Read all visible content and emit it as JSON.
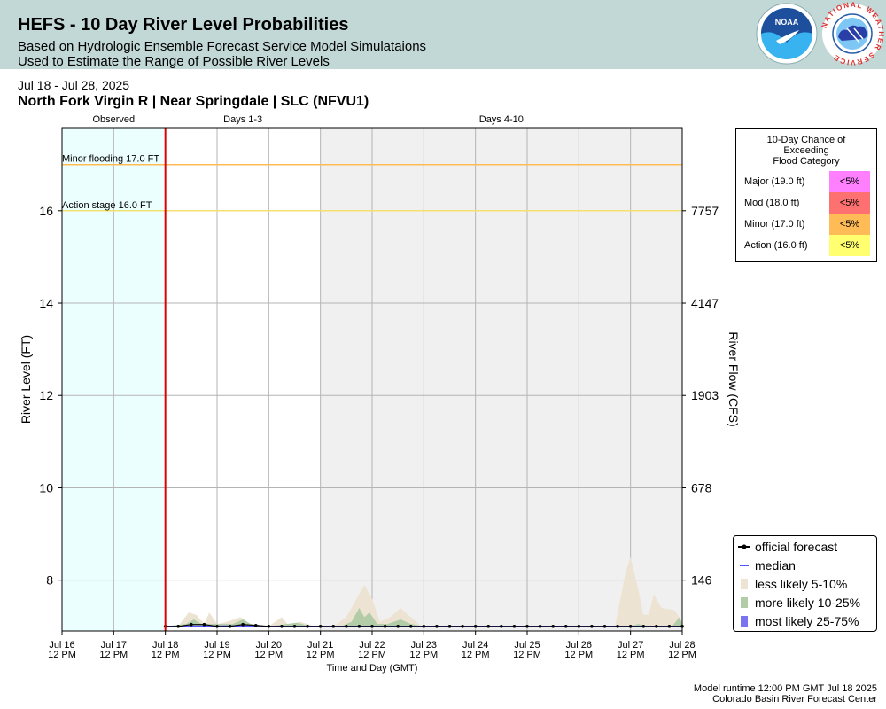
{
  "header": {
    "title": "HEFS - 10 Day River Level Probabilities",
    "subtitle1": "Based on Hydrologic Ensemble Forecast Service Model Simulataions",
    "subtitle2": "Used to Estimate the Range of Possible River Levels",
    "noaa_logo_text": "NOAA",
    "nws_logo_text": "NATIONAL WEATHER SERVICE"
  },
  "date_range": "Jul 18 - Jul 28, 2025",
  "location": "North Fork Virgin R | Near Springdale | SLC (NFVU1)",
  "footer": {
    "runtime": "Model runtime 12:00 PM GMT Jul 18 2025",
    "center": "Colorado Basin River Forecast Center"
  },
  "flood_table": {
    "title": [
      "10-Day Chance of",
      "Exceeding",
      "Flood Category"
    ],
    "rows": [
      {
        "label": "Major (19.0 ft)",
        "chance": "<5%",
        "color": "#ff80ff"
      },
      {
        "label": "Mod (18.0 ft)",
        "chance": "<5%",
        "color": "#ff7070"
      },
      {
        "label": "Minor (17.0 ft)",
        "chance": "<5%",
        "color": "#ffbb55"
      },
      {
        "label": "Action (16.0 ft)",
        "chance": "<5%",
        "color": "#ffff70"
      }
    ]
  },
  "legend": [
    {
      "label": "official forecast",
      "color": "#000000",
      "kind": "line-dot"
    },
    {
      "label": "median",
      "color": "#5555ff",
      "kind": "line"
    },
    {
      "label": "less likely 5-10%",
      "color": "#ede3d3",
      "kind": "box"
    },
    {
      "label": "more likely 10-25%",
      "color": "#b3cca8",
      "kind": "box"
    },
    {
      "label": "most likely 25-75%",
      "color": "#7a74ee",
      "kind": "box"
    }
  ],
  "chart_data": {
    "type": "area",
    "ylabel": "River Level (FT)",
    "y2label": "River Flow (CFS)",
    "xlabel": "Time and Day (GMT)",
    "ylim": [
      6.9,
      17.8
    ],
    "xlim": [
      0,
      10
    ],
    "yticks": [
      8,
      10,
      12,
      14,
      16
    ],
    "y2ticks": [
      {
        "level": 8,
        "label": "146"
      },
      {
        "level": 10,
        "label": "678"
      },
      {
        "level": 12,
        "label": "1903"
      },
      {
        "level": 14,
        "label": "4147"
      },
      {
        "level": 16,
        "label": "7757"
      }
    ],
    "xticks": [
      {
        "day": -2,
        "label": [
          "Jul 16",
          "12 PM"
        ]
      },
      {
        "day": -1,
        "label": [
          "Jul 17",
          "12 PM"
        ]
      },
      {
        "day": 0,
        "label": [
          "Jul 18",
          "12 PM"
        ]
      },
      {
        "day": 1,
        "label": [
          "Jul 19",
          "12 PM"
        ]
      },
      {
        "day": 2,
        "label": [
          "Jul 20",
          "12 PM"
        ]
      },
      {
        "day": 3,
        "label": [
          "Jul 21",
          "12 PM"
        ]
      },
      {
        "day": 4,
        "label": [
          "Jul 22",
          "12 PM"
        ]
      },
      {
        "day": 5,
        "label": [
          "Jul 23",
          "12 PM"
        ]
      },
      {
        "day": 6,
        "label": [
          "Jul 24",
          "12 PM"
        ]
      },
      {
        "day": 7,
        "label": [
          "Jul 25",
          "12 PM"
        ]
      },
      {
        "day": 8,
        "label": [
          "Jul 26",
          "12 PM"
        ]
      },
      {
        "day": 9,
        "label": [
          "Jul 27",
          "12 PM"
        ]
      },
      {
        "day": 10,
        "label": [
          "Jul 28",
          "12 PM"
        ]
      }
    ],
    "x_min_day": -2,
    "periods": [
      {
        "label": "Observed",
        "from": -2,
        "to": 0,
        "bg": "#ecffff"
      },
      {
        "label": "Days 1-3",
        "from": 0,
        "to": 3,
        "bg": "#ffffff"
      },
      {
        "label": "Days 4-10",
        "from": 3,
        "to": 10,
        "bg": "#f0f0f0"
      }
    ],
    "forecast_start_day": 0,
    "thresholds": [
      {
        "label": "Minor flooding 17.0 FT",
        "level": 17.0,
        "color": "#ffbb55"
      },
      {
        "label": "Action stage 16.0 FT",
        "level": 16.0,
        "color": "#f4e070"
      }
    ],
    "base_level": 7.0,
    "less_likely_upper": [
      [
        0,
        7.0
      ],
      [
        0.25,
        7.0
      ],
      [
        0.45,
        7.3
      ],
      [
        0.6,
        7.25
      ],
      [
        0.75,
        7.05
      ],
      [
        0.85,
        7.3
      ],
      [
        1.0,
        7.05
      ],
      [
        1.2,
        7.1
      ],
      [
        1.45,
        7.2
      ],
      [
        1.65,
        7.05
      ],
      [
        2.0,
        7.0
      ],
      [
        2.25,
        7.2
      ],
      [
        2.4,
        7.0
      ],
      [
        2.6,
        7.1
      ],
      [
        2.9,
        7.0
      ],
      [
        3.25,
        7.0
      ],
      [
        3.5,
        7.2
      ],
      [
        3.7,
        7.6
      ],
      [
        3.85,
        7.9
      ],
      [
        4.0,
        7.6
      ],
      [
        4.15,
        7.1
      ],
      [
        4.35,
        7.2
      ],
      [
        4.55,
        7.4
      ],
      [
        4.75,
        7.2
      ],
      [
        4.95,
        7.0
      ],
      [
        5.5,
        7.0
      ],
      [
        8.0,
        7.0
      ],
      [
        8.7,
        7.0
      ],
      [
        8.9,
        8.15
      ],
      [
        9.0,
        8.5
      ],
      [
        9.15,
        7.8
      ],
      [
        9.25,
        7.25
      ],
      [
        9.35,
        7.25
      ],
      [
        9.45,
        7.7
      ],
      [
        9.6,
        7.4
      ],
      [
        9.85,
        7.35
      ],
      [
        10.0,
        7.1
      ]
    ],
    "more_likely_upper": [
      [
        0,
        7.0
      ],
      [
        0.4,
        7.05
      ],
      [
        0.55,
        7.15
      ],
      [
        0.7,
        7.05
      ],
      [
        1.0,
        7.05
      ],
      [
        1.3,
        7.05
      ],
      [
        1.5,
        7.15
      ],
      [
        1.65,
        7.05
      ],
      [
        2.0,
        7.0
      ],
      [
        2.55,
        7.08
      ],
      [
        2.8,
        7.0
      ],
      [
        3.4,
        7.0
      ],
      [
        3.6,
        7.1
      ],
      [
        3.75,
        7.4
      ],
      [
        3.85,
        7.2
      ],
      [
        3.95,
        7.3
      ],
      [
        4.1,
        7.05
      ],
      [
        4.3,
        7.05
      ],
      [
        4.55,
        7.15
      ],
      [
        4.75,
        7.05
      ],
      [
        5.0,
        7.0
      ],
      [
        9.0,
        7.0
      ],
      [
        9.15,
        7.05
      ],
      [
        9.3,
        7.0
      ],
      [
        9.8,
        7.0
      ],
      [
        9.95,
        7.2
      ],
      [
        10.0,
        7.05
      ]
    ],
    "most_likely_upper": [
      [
        0,
        7.0
      ],
      [
        0.5,
        7.02
      ],
      [
        1.0,
        7.02
      ],
      [
        1.5,
        7.03
      ],
      [
        2.0,
        7.0
      ],
      [
        10.0,
        7.0
      ]
    ],
    "median": [
      [
        0,
        7.0
      ],
      [
        10.0,
        7.0
      ]
    ],
    "official_forecast": [
      [
        0,
        7.0
      ],
      [
        0.25,
        7.0
      ],
      [
        0.5,
        7.04
      ],
      [
        0.75,
        7.04
      ],
      [
        1.0,
        7.0
      ],
      [
        1.25,
        7.0
      ],
      [
        1.5,
        7.04
      ],
      [
        1.75,
        7.02
      ],
      [
        2.0,
        7.0
      ],
      [
        2.25,
        7.0
      ],
      [
        2.5,
        7.0
      ],
      [
        2.75,
        7.0
      ],
      [
        3.0,
        7.0
      ],
      [
        3.25,
        7.0
      ],
      [
        3.5,
        7.0
      ],
      [
        3.75,
        7.0
      ],
      [
        4.0,
        7.0
      ],
      [
        4.25,
        7.0
      ],
      [
        4.5,
        7.0
      ],
      [
        4.75,
        7.0
      ],
      [
        5.0,
        7.0
      ],
      [
        5.25,
        7.0
      ],
      [
        5.5,
        7.0
      ],
      [
        5.75,
        7.0
      ],
      [
        6.0,
        7.0
      ],
      [
        6.25,
        7.0
      ],
      [
        6.5,
        7.0
      ],
      [
        6.75,
        7.0
      ],
      [
        7.0,
        7.0
      ],
      [
        7.25,
        7.0
      ],
      [
        7.5,
        7.0
      ],
      [
        7.75,
        7.0
      ],
      [
        8.0,
        7.0
      ],
      [
        8.25,
        7.0
      ],
      [
        8.5,
        7.0
      ],
      [
        8.75,
        7.0
      ],
      [
        9.0,
        7.0
      ],
      [
        9.25,
        7.0
      ],
      [
        9.5,
        7.0
      ],
      [
        9.75,
        7.0
      ],
      [
        10.0,
        7.0
      ]
    ],
    "grid": true
  }
}
